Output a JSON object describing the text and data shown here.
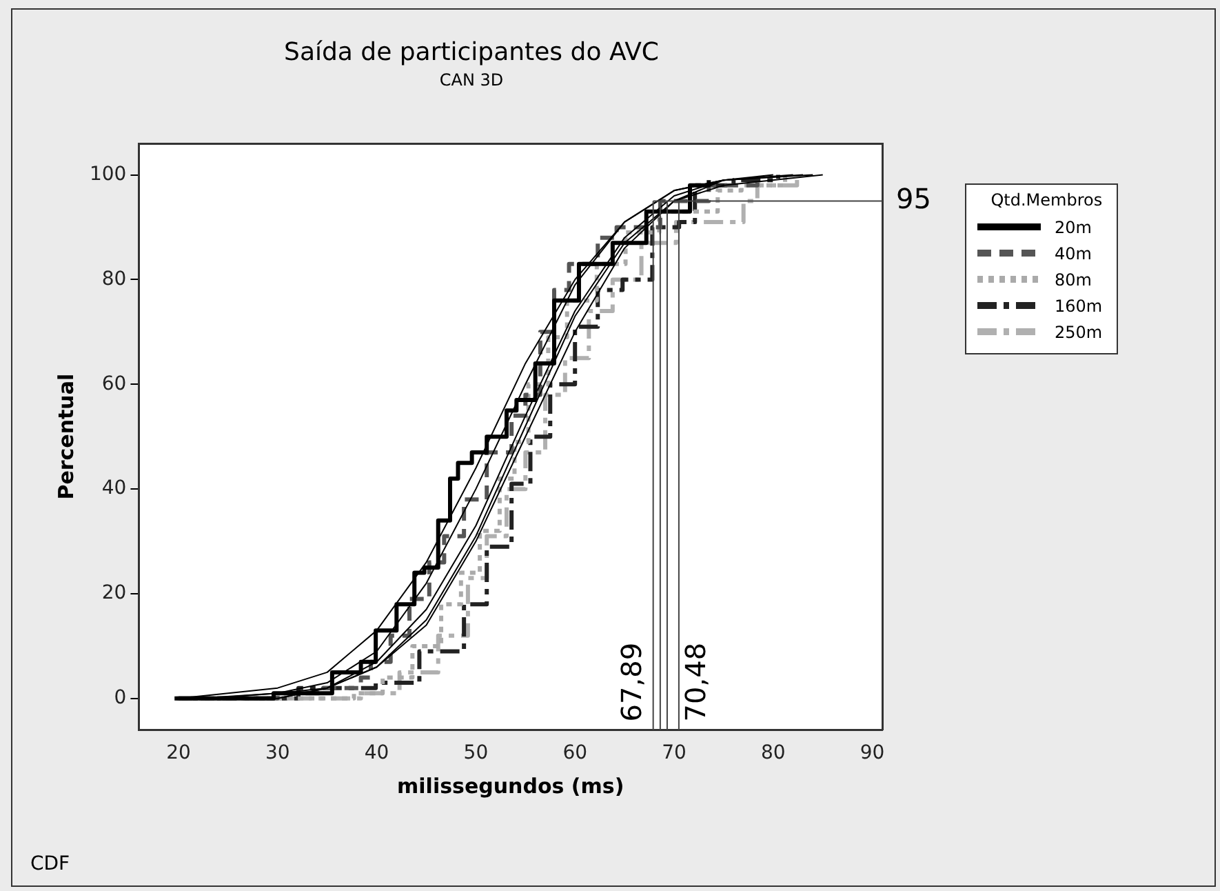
{
  "chart_data": {
    "type": "step",
    "title": "Saída de participantes do AVC",
    "subtitle": "CAN 3D",
    "xlabel": "milissegundos (ms)",
    "ylabel": "Percentual",
    "legend_title": "Qtd.Membros",
    "legend": "top right",
    "grid": false,
    "marker": "none",
    "xlim": [
      16,
      91
    ],
    "xticks": [
      20,
      30,
      40,
      50,
      60,
      70,
      80,
      90
    ],
    "ylim": [
      -6,
      106
    ],
    "yticks": [
      0,
      20,
      40,
      60,
      80,
      100
    ],
    "series": [
      {
        "name": "20m",
        "color": "#000000",
        "line_style": "solid",
        "x": [
          19.6,
          29.6,
          35.5,
          38.4,
          39.9,
          41.9,
          42,
          43.3,
          43.8,
          44.8,
          46.2,
          47.4,
          48.2,
          49.6,
          51.1,
          53.1,
          54.1,
          56,
          57.9,
          60.4,
          63.8,
          67.2,
          71.6,
          73.5
        ],
        "values": [
          0,
          1,
          5,
          7,
          13,
          13,
          18,
          18,
          24,
          25,
          34,
          42,
          45,
          47,
          50,
          55,
          57,
          64,
          76,
          83,
          87,
          93,
          98,
          99
        ]
      },
      {
        "name": "40m",
        "color": "#555555",
        "line_style": "dashed",
        "x": [
          20,
          30,
          34.6,
          38.4,
          39.4,
          41.4,
          43.3,
          45.3,
          46.8,
          48.8,
          51.1,
          53.6,
          55,
          56.5,
          57.9,
          59.4,
          62.3,
          64.2,
          68.6,
          73.5,
          78.4
        ],
        "values": [
          0,
          1,
          2,
          4,
          7,
          12,
          19,
          26,
          31,
          38,
          47,
          54,
          58,
          70,
          78,
          83,
          88,
          90,
          95,
          98,
          100
        ]
      },
      {
        "name": "80m",
        "color": "#aaaaaa",
        "line_style": "dotted",
        "x": [
          19.8,
          37.7,
          40.6,
          43.6,
          46.5,
          48.5,
          50.4,
          52.4,
          53.9,
          55.3,
          57.3,
          59.2,
          62.2,
          65.1,
          68.5,
          74.4,
          76.8,
          81.2
        ],
        "values": [
          0,
          1,
          4,
          10,
          18,
          24,
          32,
          42,
          49,
          60,
          69,
          76,
          83,
          89,
          93,
          97,
          98,
          100
        ]
      },
      {
        "name": "160m",
        "color": "#222222",
        "line_style": "dashdot",
        "x": [
          20,
          32.1,
          39.9,
          44.3,
          48.8,
          51.1,
          53.6,
          55.5,
          57.5,
          60,
          62.3,
          64.8,
          67.8,
          70.5,
          72.1,
          76,
          80.5
        ],
        "values": [
          0,
          2,
          3,
          9,
          18,
          29,
          41,
          50,
          60,
          71,
          78,
          80,
          90,
          91,
          98,
          99,
          100
        ]
      },
      {
        "name": "250m",
        "color": "#b0b0b0",
        "line_style": "dashdot",
        "x": [
          19.8,
          38.4,
          42.3,
          46.2,
          49.2,
          51.1,
          53.1,
          55,
          57,
          59,
          61.4,
          63.8,
          66.7,
          70.2,
          77,
          78.4,
          82.4
        ],
        "values": [
          0,
          1,
          5,
          12,
          23,
          31,
          40,
          47,
          58,
          65,
          74,
          80,
          87,
          91,
          95,
          98,
          100
        ]
      },
      {
        "type": "line",
        "color": "#000000",
        "line_style": "solid",
        "x": [
          20,
          30,
          35,
          40,
          45,
          50,
          55,
          60,
          65,
          70,
          75,
          80
        ],
        "values": [
          0,
          2,
          5,
          13,
          26,
          44,
          64,
          80,
          91,
          97,
          99,
          100
        ]
      },
      {
        "type": "line",
        "color": "#000000",
        "line_style": "solid",
        "x": [
          22,
          30,
          35,
          40,
          45,
          50,
          55,
          60,
          65,
          70,
          75,
          82
        ],
        "values": [
          0,
          1,
          3,
          9,
          22,
          40,
          60,
          79,
          91,
          97,
          99,
          100
        ]
      },
      {
        "type": "line",
        "color": "#000000",
        "line_style": "solid",
        "x": [
          25,
          30,
          35,
          40,
          45,
          50,
          55,
          60,
          65,
          70,
          75,
          84
        ],
        "values": [
          0,
          0,
          2,
          6,
          15,
          31,
          52,
          73,
          87,
          95,
          99,
          100
        ]
      },
      {
        "type": "line",
        "color": "#000000",
        "line_style": "solid",
        "x": [
          23,
          30,
          35,
          40,
          45,
          50,
          55,
          60,
          65,
          70,
          75,
          83
        ],
        "values": [
          0,
          1,
          2,
          7,
          17,
          33,
          54,
          74,
          88,
          96,
          99,
          100
        ]
      },
      {
        "type": "line",
        "color": "#000000",
        "line_style": "solid",
        "x": [
          26,
          30,
          35,
          40,
          45,
          50,
          55,
          60,
          65,
          70,
          75,
          85
        ],
        "values": [
          0,
          0,
          2,
          6,
          14,
          30,
          50,
          70,
          86,
          95,
          98,
          100
        ]
      }
    ],
    "ref_lines": [
      {
        "axis": "y",
        "value": 95,
        "label": "95"
      },
      {
        "axis": "x",
        "value": 67.89,
        "label": "67,89"
      },
      {
        "axis": "x",
        "value": 68.6,
        "label": null
      },
      {
        "axis": "x",
        "value": 69.3,
        "label": null
      },
      {
        "axis": "x",
        "value": 70.48,
        "label": "70,48"
      }
    ],
    "annotations": [
      "CDF"
    ]
  }
}
